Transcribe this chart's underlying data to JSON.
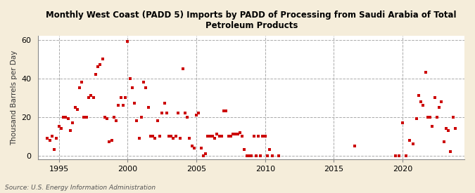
{
  "title": "Monthly West Coast (PADD 5) Imports by PADD of Processing from Saudi Arabia of Total\nPetroleum Products",
  "ylabel": "Thousand Barrels per Day",
  "source": "Source: U.S. Energy Information Administration",
  "bg_color": "#f5edda",
  "plot_bg_color": "#ffffff",
  "marker_color": "#cc0000",
  "xlim": [
    1993.5,
    2024.5
  ],
  "ylim": [
    -2,
    62
  ],
  "yticks": [
    0,
    20,
    40,
    60
  ],
  "xticks": [
    1995,
    2000,
    2005,
    2010,
    2015,
    2020
  ],
  "data_x": [
    1994.17,
    1994.33,
    1994.5,
    1994.67,
    1994.83,
    1995.0,
    1995.17,
    1995.33,
    1995.5,
    1995.67,
    1995.83,
    1996.0,
    1996.17,
    1996.33,
    1996.5,
    1996.67,
    1996.83,
    1997.0,
    1997.17,
    1997.33,
    1997.5,
    1997.67,
    1997.83,
    1998.0,
    1998.17,
    1998.33,
    1998.5,
    1998.67,
    1998.83,
    1999.0,
    1999.17,
    1999.33,
    1999.5,
    1999.67,
    1999.83,
    2000.0,
    2000.17,
    2000.33,
    2000.5,
    2000.67,
    2000.83,
    2001.0,
    2001.17,
    2001.33,
    2001.5,
    2001.67,
    2001.83,
    2002.0,
    2002.17,
    2002.33,
    2002.5,
    2002.67,
    2002.83,
    2003.0,
    2003.17,
    2003.33,
    2003.5,
    2003.67,
    2003.83,
    2004.0,
    2004.17,
    2004.33,
    2004.5,
    2004.67,
    2004.83,
    2005.0,
    2005.17,
    2005.33,
    2005.5,
    2005.67,
    2005.83,
    2006.0,
    2006.17,
    2006.33,
    2006.5,
    2006.67,
    2006.83,
    2007.0,
    2007.17,
    2007.33,
    2007.5,
    2007.67,
    2007.83,
    2008.0,
    2008.17,
    2008.33,
    2008.5,
    2008.67,
    2008.83,
    2009.0,
    2009.17,
    2009.33,
    2009.5,
    2009.67,
    2009.83,
    2010.0,
    2010.17,
    2010.33,
    2010.5,
    2011.0,
    2016.5,
    2019.5,
    2019.75,
    2020.0,
    2020.25,
    2020.5,
    2020.75,
    2021.0,
    2021.17,
    2021.33,
    2021.5,
    2021.67,
    2021.83,
    2022.0,
    2022.17,
    2022.33,
    2022.5,
    2022.67,
    2022.83,
    2023.0,
    2023.17,
    2023.33,
    2023.5,
    2023.67,
    2023.83
  ],
  "data_y": [
    9,
    8,
    10,
    3,
    9,
    15,
    14,
    20,
    20,
    19,
    13,
    17,
    25,
    24,
    35,
    38,
    20,
    20,
    30,
    31,
    30,
    42,
    46,
    47,
    50,
    20,
    19,
    7,
    8,
    20,
    18,
    26,
    30,
    26,
    30,
    59,
    40,
    35,
    27,
    18,
    9,
    20,
    38,
    35,
    25,
    10,
    10,
    9,
    18,
    10,
    22,
    27,
    22,
    10,
    10,
    9,
    10,
    22,
    9,
    45,
    22,
    20,
    9,
    5,
    4,
    21,
    22,
    4,
    0,
    1,
    10,
    10,
    10,
    9,
    11,
    10,
    10,
    23,
    23,
    10,
    10,
    11,
    11,
    11,
    12,
    10,
    3,
    0,
    0,
    0,
    10,
    0,
    10,
    0,
    10,
    10,
    0,
    3,
    0,
    0,
    5,
    0,
    0,
    17,
    0,
    8,
    6,
    19,
    31,
    28,
    26,
    43,
    20,
    20,
    15,
    30,
    20,
    25,
    28,
    7,
    14,
    13,
    2,
    20,
    14
  ]
}
